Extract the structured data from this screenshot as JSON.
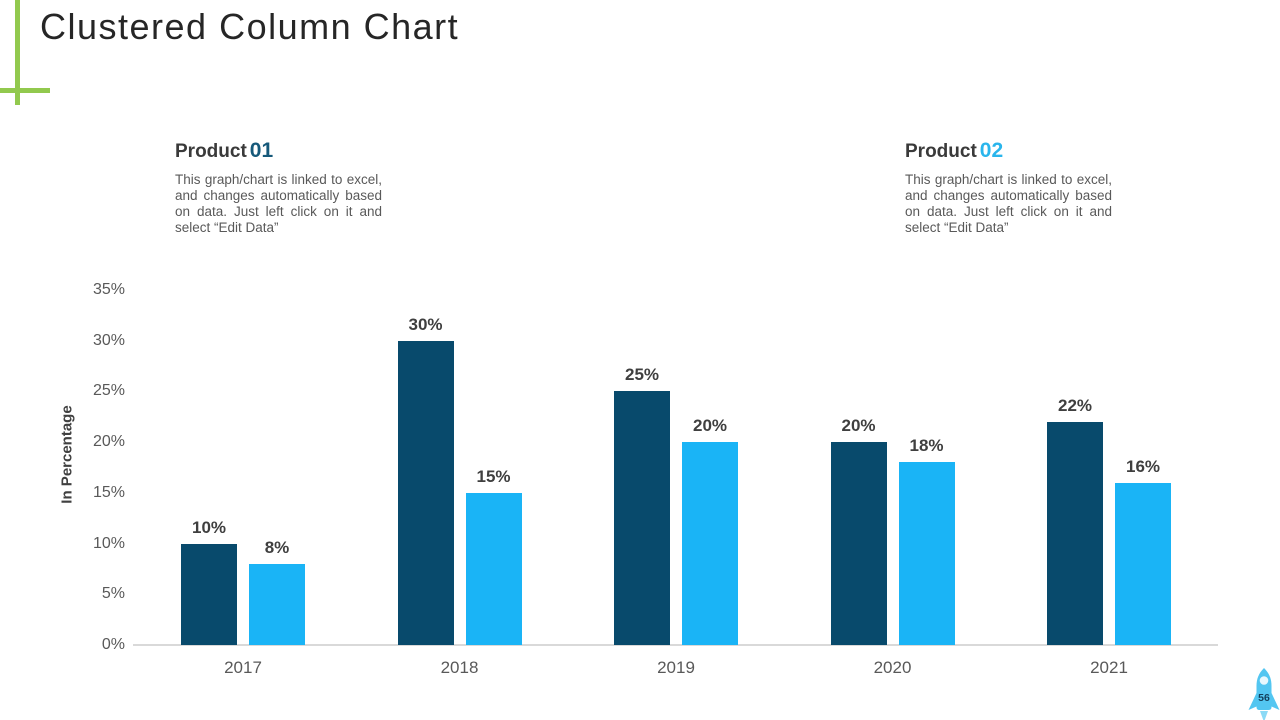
{
  "slide": {
    "title": "Clustered Column Chart",
    "page_number": "56"
  },
  "products": [
    {
      "name": "Product",
      "number": "01",
      "number_color": "#16597A",
      "description": "This graph/chart is linked to excel, and changes automatically based on data. Just left click on it and select “Edit Data”"
    },
    {
      "name": "Product",
      "number": "02",
      "number_color": "#29B5EC",
      "description": "This graph/chart is linked to excel, and changes automatically based on data. Just left click on it and select “Edit Data”"
    }
  ],
  "chart_data": {
    "type": "bar",
    "title": "",
    "categories": [
      "2017",
      "2018",
      "2019",
      "2020",
      "2021"
    ],
    "series": [
      {
        "name": "Product 01",
        "color": "#084A6C",
        "values": [
          10,
          30,
          25,
          20,
          22
        ]
      },
      {
        "name": "Product 02",
        "color": "#1AB4F6",
        "values": [
          8,
          15,
          20,
          18,
          16
        ]
      }
    ],
    "ylabel": "In Percentage",
    "xlabel": "",
    "ylim": [
      0,
      35
    ],
    "ytick_step": 5,
    "yticks": [
      "0%",
      "5%",
      "10%",
      "15%",
      "20%",
      "25%",
      "30%",
      "35%"
    ],
    "data_labels": true,
    "data_label_suffix": "%",
    "grid": false,
    "legend_position": "none"
  },
  "colors": {
    "accent_green": "#92C94E",
    "axis_line": "#D9D9D9",
    "tick_text": "#595959",
    "data_label_text": "#3F3F3F",
    "rocket_body": "#53C6F1",
    "rocket_flame": "#8BDAF6",
    "rocket_window": "#E9F8FE",
    "rocket_number": "#123F5B"
  }
}
